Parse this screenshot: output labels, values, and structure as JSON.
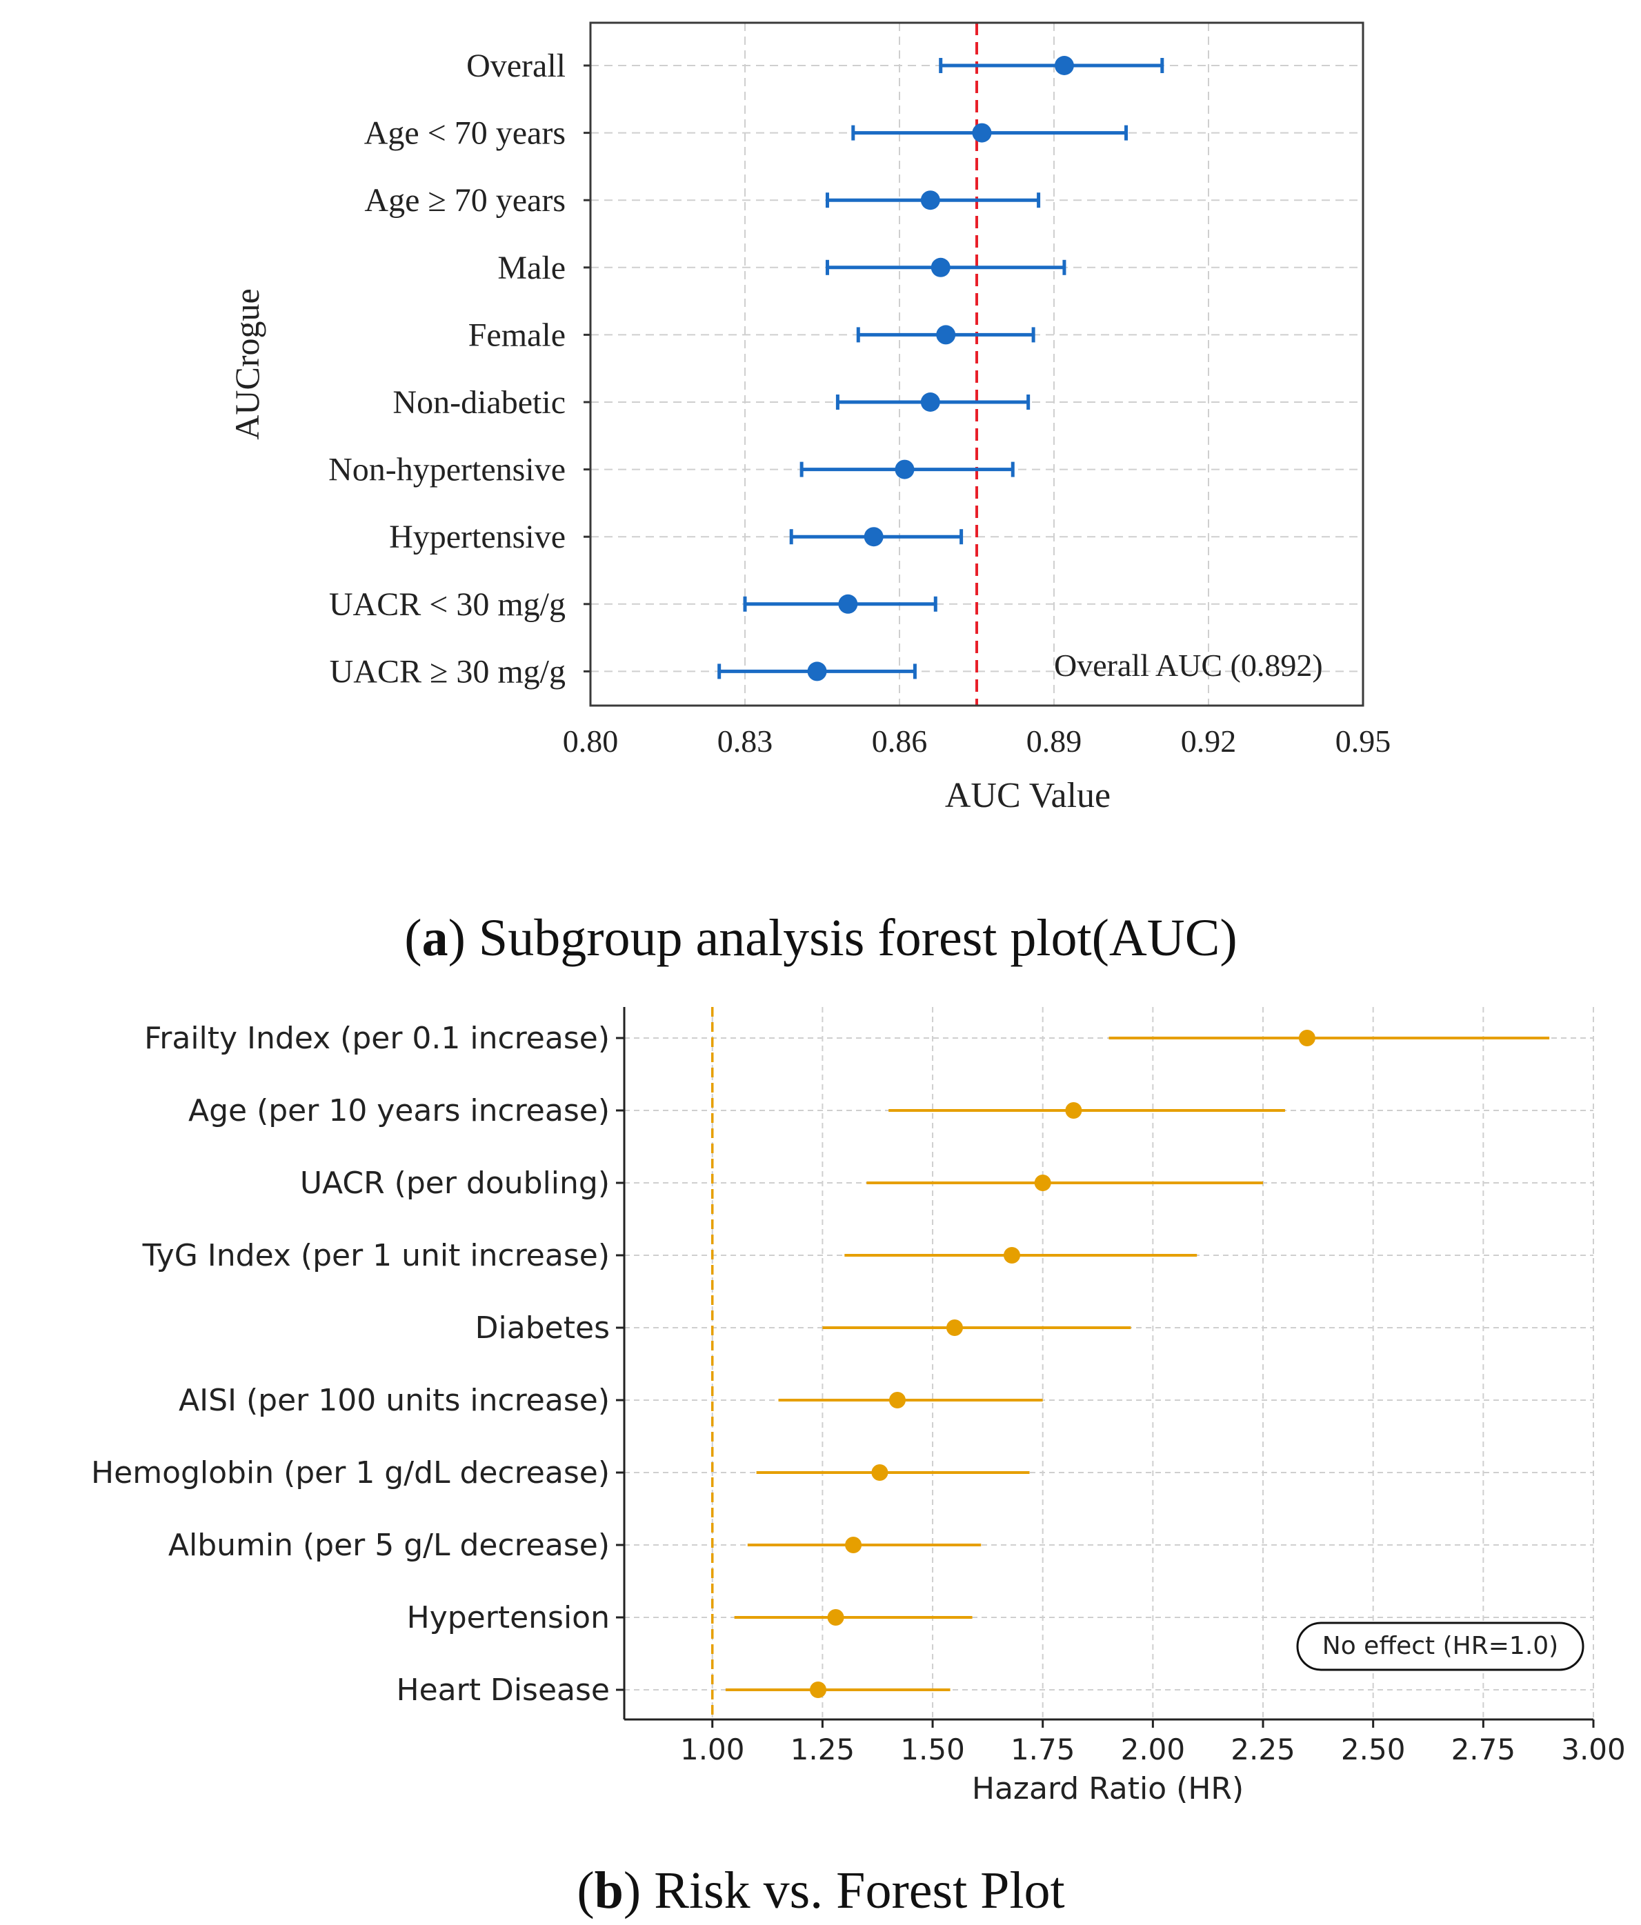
{
  "chart_data": [
    {
      "type": "scatter",
      "subtype": "forest",
      "panel_letter": "a",
      "caption": "Subgroup analysis forest plot(AUC)",
      "xlabel": "AUC Value",
      "ylabel": "AUCrogue",
      "xlim": [
        0.8,
        0.95
      ],
      "xticks": [
        "0.80",
        "0.83",
        "0.86",
        "0.89",
        "0.92",
        "0.95"
      ],
      "grid": true,
      "reference_line": {
        "value": 0.875,
        "color": "#e8202a",
        "style": "dashed"
      },
      "annotation": "Overall AUC (0.892)",
      "color": "#1a6bc4",
      "categories": [
        "Overall",
        "Age < 70 years",
        "Age ≥ 70 years",
        "Male",
        "Female",
        "Non-diabetic",
        "Non-hypertensive",
        "Hypertensive",
        "UACR < 30 mg/g",
        "UACR ≥ 30 mg/g"
      ],
      "estimates": [
        0.892,
        0.876,
        0.866,
        0.868,
        0.869,
        0.866,
        0.861,
        0.855,
        0.85,
        0.844
      ],
      "lower": [
        0.868,
        0.851,
        0.846,
        0.846,
        0.852,
        0.848,
        0.841,
        0.839,
        0.83,
        0.825
      ],
      "upper": [
        0.911,
        0.904,
        0.887,
        0.892,
        0.886,
        0.885,
        0.882,
        0.872,
        0.867,
        0.863
      ]
    },
    {
      "type": "scatter",
      "subtype": "forest",
      "panel_letter": "b",
      "caption": "Risk vs. Forest Plot",
      "xlabel": "Hazard Ratio (HR)",
      "ylabel": "",
      "xlim": [
        0.8,
        3.0
      ],
      "xticks": [
        "1.00",
        "1.25",
        "1.50",
        "1.75",
        "2.00",
        "2.25",
        "2.50",
        "2.75",
        "3.00"
      ],
      "grid": true,
      "reference_line": {
        "value": 1.0,
        "color": "#e69f00",
        "style": "dashed"
      },
      "legend": {
        "label": "No effect (HR=1.0)",
        "placement": "bottom-right"
      },
      "color": "#e69f00",
      "categories": [
        "Frailty Index (per 0.1 increase)",
        "Age (per 10 years increase)",
        "UACR (per doubling)",
        "TyG Index (per 1 unit increase)",
        "Diabetes",
        "AISI (per 100 units increase)",
        "Hemoglobin (per 1 g/dL decrease)",
        "Albumin (per 5 g/L decrease)",
        "Hypertension",
        "Heart Disease"
      ],
      "estimates": [
        2.35,
        1.82,
        1.75,
        1.68,
        1.55,
        1.42,
        1.38,
        1.32,
        1.28,
        1.24
      ],
      "lower": [
        1.9,
        1.4,
        1.35,
        1.3,
        1.25,
        1.15,
        1.1,
        1.08,
        1.05,
        1.03
      ],
      "upper": [
        2.9,
        2.3,
        2.25,
        2.1,
        1.95,
        1.75,
        1.72,
        1.61,
        1.59,
        1.54
      ]
    }
  ]
}
